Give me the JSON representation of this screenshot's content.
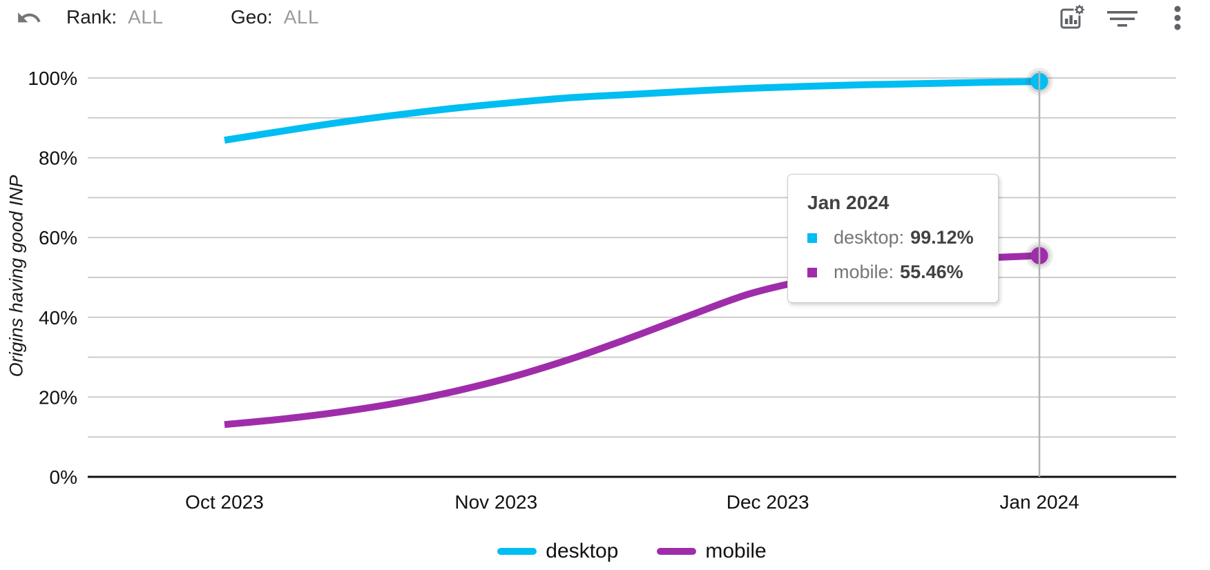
{
  "header": {
    "rank": {
      "label": "Rank:",
      "value": "ALL"
    },
    "geo": {
      "label": "Geo:",
      "value": "ALL"
    },
    "icons": {
      "undo": "curved-left-arrow",
      "chart_settings": "bar-chart-with-gear",
      "filter": "filter-lines",
      "more": "vertical-ellipsis"
    },
    "icon_color": "#5f6368"
  },
  "chart_data": {
    "type": "line",
    "title": "",
    "xlabel": "",
    "ylabel": "Origins having good INP",
    "ylim": [
      0,
      100
    ],
    "grid": true,
    "legend_position": "bottom",
    "y_minor_step": 10,
    "y_ticks": [
      {
        "v": 0,
        "label": "0%"
      },
      {
        "v": 20,
        "label": "20%"
      },
      {
        "v": 40,
        "label": "40%"
      },
      {
        "v": 60,
        "label": "60%"
      },
      {
        "v": 80,
        "label": "80%"
      },
      {
        "v": 100,
        "label": "100%"
      }
    ],
    "x_ticks": [
      {
        "f": 0,
        "label": "Oct 2023"
      },
      {
        "f": 0.3333,
        "label": "Nov 2023"
      },
      {
        "f": 0.6667,
        "label": "Dec 2023"
      },
      {
        "f": 1,
        "label": "Jan 2024"
      }
    ],
    "x_dates": [
      "2023-10-01",
      "2023-10-08",
      "2023-10-14",
      "2023-10-21",
      "2023-10-27",
      "2023-11-03",
      "2023-11-09",
      "2023-11-16",
      "2023-11-22",
      "2023-11-29",
      "2023-12-05",
      "2023-12-12",
      "2023-12-18",
      "2023-12-25",
      "2024-01-01"
    ],
    "series": [
      {
        "name": "desktop",
        "color": "#00bdf2",
        "values": [
          84.4,
          86.7,
          88.9,
          90.8,
          92.5,
          93.9,
          95.1,
          95.9,
          96.7,
          97.4,
          97.9,
          98.3,
          98.6,
          98.9,
          99.12
        ],
        "end_value": 99.12
      },
      {
        "name": "mobile",
        "color": "#9f2daa",
        "values": [
          13.1,
          14.5,
          16.3,
          18.6,
          21.6,
          25.3,
          29.8,
          35.0,
          40.5,
          45.8,
          49.3,
          51.8,
          53.6,
          54.8,
          55.46
        ],
        "end_value": 55.46
      }
    ],
    "crosshair_x_label": "Jan 2024",
    "gridline_color": "#cccccc",
    "axis_color": "#111111",
    "crosshair_color": "#b4b4b4"
  },
  "tooltip": {
    "title": "Jan 2024",
    "rows": [
      {
        "label": "desktop:",
        "value": "99.12%",
        "color": "#00bdf2"
      },
      {
        "label": "mobile:",
        "value": "55.46%",
        "color": "#9f2daa"
      }
    ]
  },
  "legend": {
    "items": [
      {
        "label": "desktop",
        "color": "#00bdf2"
      },
      {
        "label": "mobile",
        "color": "#9f2daa"
      }
    ]
  }
}
